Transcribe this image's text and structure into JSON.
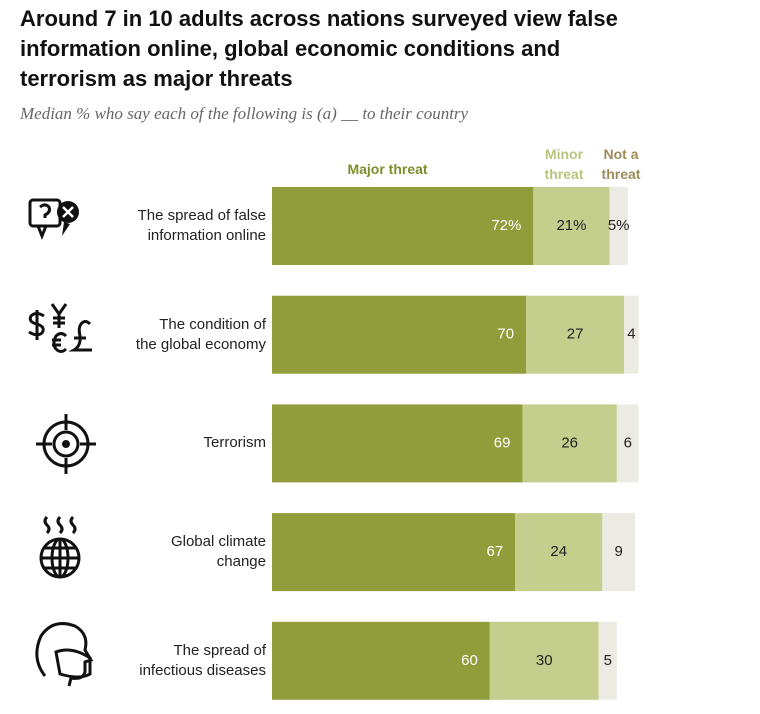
{
  "chart_data": {
    "type": "stacked-bar-horizontal",
    "title": "Around 7 in 10 adults across nations surveyed view false information online, global economic conditions and terrorism as major threats",
    "subtitle": "Median % who say each of the following is (a) __ to their country",
    "categories": [
      "The spread of false\ninformation online",
      "The condition of\nthe global economy",
      "Terrorism",
      "Global climate\nchange",
      "The spread of\ninfectious diseases"
    ],
    "series": [
      {
        "name": "Major threat",
        "color": "#919d3b",
        "label_color": "#ffffff",
        "values": [
          72,
          70,
          69,
          67,
          60
        ],
        "value_labels": [
          "72%",
          "70",
          "69",
          "67",
          "60"
        ]
      },
      {
        "name": "Minor threat",
        "color": "#c4ce8d",
        "label_color": "#222222",
        "values": [
          21,
          27,
          26,
          24,
          30
        ],
        "value_labels": [
          "21%",
          "27",
          "26",
          "24",
          "30"
        ]
      },
      {
        "name": "Not a threat",
        "color": "#ebebe3",
        "label_color": "#222222",
        "values": [
          5,
          4,
          6,
          9,
          5
        ],
        "value_labels": [
          "5%",
          "4",
          "6",
          "9",
          "5"
        ]
      }
    ],
    "legend_colors": [
      "#7f8c2c",
      "#b9c57e",
      "#9d8c57"
    ]
  }
}
